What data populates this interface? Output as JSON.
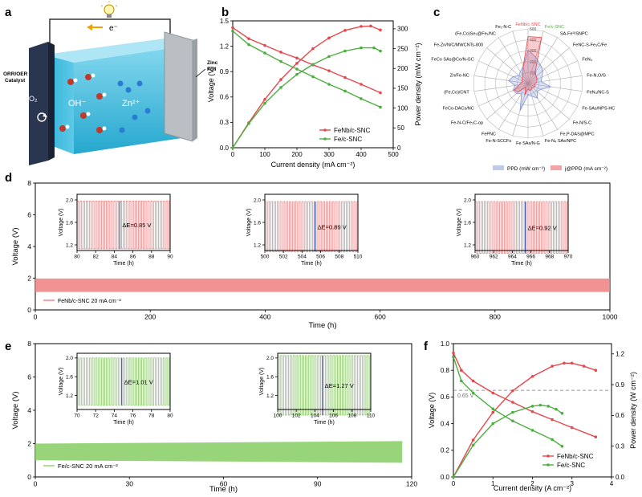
{
  "panels": {
    "a": {
      "letter": "a",
      "electron": "e⁻",
      "catalyst": [
        "ORR/OER",
        "Catalyst"
      ],
      "zinc": [
        "Zinc",
        "Foil"
      ],
      "o2": "O₂",
      "oh": "OH⁻",
      "zn": "Zn²⁺"
    },
    "b": {
      "letter": "b"
    },
    "c": {
      "letter": "c"
    },
    "d": {
      "letter": "d"
    },
    "e": {
      "letter": "e"
    },
    "f": {
      "letter": "f"
    }
  },
  "chart_data": [
    {
      "id": "b",
      "type": "line",
      "xlabel": "Current density (mA cm⁻²)",
      "ylabel": "Voltage (V)",
      "y2label": "Power density (mW cm⁻²)",
      "xlim": [
        0,
        500
      ],
      "ylim": [
        0,
        1.5
      ],
      "y2lim": [
        0,
        320
      ],
      "xticks": [
        0,
        100,
        200,
        300,
        400,
        500
      ],
      "yticks": [
        0.0,
        0.3,
        0.6,
        0.9,
        1.2,
        1.5
      ],
      "y2ticks": [
        0,
        50,
        100,
        150,
        200,
        250,
        300
      ],
      "legend_position": "bottom-right",
      "series": [
        {
          "name": "FeNb/c-SNC",
          "axis": "left",
          "color": "#e8474d",
          "x": [
            0,
            50,
            100,
            150,
            200,
            250,
            300,
            350,
            400,
            460
          ],
          "y": [
            1.42,
            1.29,
            1.21,
            1.13,
            1.06,
            0.98,
            0.91,
            0.83,
            0.75,
            0.65
          ]
        },
        {
          "name": "FeNb/c-SNC",
          "axis": "right",
          "color": "#e8474d",
          "x": [
            0,
            50,
            100,
            150,
            200,
            250,
            300,
            350,
            400,
            430,
            460
          ],
          "y": [
            0,
            63,
            122,
            172,
            213,
            250,
            277,
            296,
            306,
            307,
            297
          ]
        },
        {
          "name": "Fe/c-SNC",
          "axis": "left",
          "color": "#4caf3f",
          "x": [
            0,
            50,
            100,
            150,
            200,
            250,
            300,
            350,
            400,
            460
          ],
          "y": [
            1.38,
            1.22,
            1.12,
            1.02,
            0.93,
            0.84,
            0.75,
            0.67,
            0.58,
            0.48
          ]
        },
        {
          "name": "Fe/c-SNC",
          "axis": "right",
          "color": "#4caf3f",
          "x": [
            0,
            50,
            100,
            150,
            200,
            250,
            300,
            350,
            400,
            440,
            460
          ],
          "y": [
            0,
            61,
            112,
            152,
            185,
            210,
            230,
            244,
            252,
            252,
            244
          ]
        }
      ]
    },
    {
      "id": "c",
      "type": "radar",
      "ring_labels": [
        "100",
        "200",
        "300",
        "400",
        "500"
      ],
      "spokes": [
        "FeNb/c-SNC",
        "Fe/c-SNC",
        "SA-Fe⁰/SNPC",
        "FeNC-S-Fe₃C/Fe",
        "FeN₄",
        "Fe-N,O/G",
        "FeN₄/NC-S",
        "Fe-SAs/NPS-HC",
        "Fe-N/S-C",
        "Fe,P-DAS@MPC",
        "Fe-N₄ SAs/NPC",
        "Fe SAs/N-G",
        "Fe-N-SCCFs",
        "FePNC",
        "Fe-N-C/Fe₃C-op",
        "FeCo-DACs/NC",
        "(Fe,Co)/CNT",
        "Zn/Fe-NC",
        "FeCo SAs@Co/N-GC",
        "Fe-Zn/N/C/MWCNTs-800",
        "(Fe,Co)Se₂@Fe₁/NC",
        "Fe₁-N-C"
      ],
      "series": [
        {
          "name": "PPD (mW cm⁻²)",
          "color": "#7f93d6",
          "values": [
            306,
            252,
            205,
            180,
            140,
            120,
            210,
            130,
            110,
            160,
            120,
            105,
            260,
            110,
            140,
            150,
            120,
            180,
            150,
            110,
            130,
            160
          ]
        },
        {
          "name": "j@PPD (mA cm⁻²)",
          "color": "#e8474d",
          "values": [
            430,
            440,
            120,
            100,
            90,
            80,
            60,
            70,
            50,
            60,
            70,
            50,
            110,
            40,
            120,
            140,
            80,
            60,
            60,
            70,
            90,
            160
          ]
        }
      ]
    },
    {
      "id": "d",
      "type": "line",
      "xlabel": "Time (h)",
      "ylabel": "Voltage (V)",
      "xlim": [
        0,
        1000
      ],
      "ylim": [
        0,
        8
      ],
      "xticks": [
        0,
        200,
        400,
        600,
        800,
        1000
      ],
      "yticks": [
        0,
        2,
        4,
        6,
        8
      ],
      "series": [
        {
          "name": "FeNb/c-SNC 20 mA cm⁻²",
          "color": "#f08080",
          "charge_voltage": 1.98,
          "discharge_voltage": 1.13,
          "x": [
            0,
            1000
          ]
        }
      ],
      "insets": [
        {
          "xlim": [
            80,
            90
          ],
          "xticks": [
            80,
            82,
            84,
            86,
            88,
            90
          ],
          "ylim": [
            1.1,
            2.1
          ],
          "yticks": [
            1.2,
            1.6,
            2.0
          ],
          "annotation": "ΔE=0.85 V",
          "marker_x": 84.6,
          "cycle_period": 0.33,
          "vhigh": 1.98,
          "vlow": 1.13,
          "xlabel": "Time (h)",
          "ylabel": "Voltage (V)"
        },
        {
          "xlim": [
            500,
            510
          ],
          "xticks": [
            500,
            502,
            504,
            506,
            508,
            510
          ],
          "ylim": [
            1.1,
            2.1
          ],
          "yticks": [
            1.2,
            1.6,
            2.0
          ],
          "annotation": "ΔE=0.89 V",
          "marker_x": 505.4,
          "cycle_period": 0.33,
          "vhigh": 1.97,
          "vlow": 1.08,
          "xlabel": "Time (h)",
          "ylabel": "Voltage (V)"
        },
        {
          "xlim": [
            960,
            970
          ],
          "xticks": [
            960,
            962,
            964,
            966,
            968,
            970
          ],
          "ylim": [
            1.1,
            2.1
          ],
          "yticks": [
            1.2,
            1.6,
            2.0
          ],
          "annotation": "ΔE=0.92 V",
          "marker_x": 965.4,
          "cycle_period": 0.33,
          "vhigh": 1.97,
          "vlow": 1.05,
          "xlabel": "Time (h)",
          "ylabel": "Voltage (V)"
        }
      ]
    },
    {
      "id": "e",
      "type": "line",
      "xlabel": "Time (h)",
      "ylabel": "Voltage (V)",
      "xlim": [
        0,
        120
      ],
      "ylim": [
        0,
        8
      ],
      "xticks": [
        0,
        30,
        60,
        90,
        120
      ],
      "yticks": [
        0,
        2,
        4,
        6,
        8
      ],
      "series": [
        {
          "name": "Fe/c-SNC 20 mA cm⁻²",
          "color": "#8dcf6a",
          "charge_start": 2.0,
          "charge_end": 2.15,
          "discharge_start": 1.0,
          "discharge_end": 0.85,
          "x": [
            0,
            117
          ]
        }
      ],
      "insets": [
        {
          "xlim": [
            70,
            80
          ],
          "xticks": [
            70,
            72,
            74,
            76,
            78,
            80
          ],
          "ylim": [
            0.9,
            2.1
          ],
          "yticks": [
            1.2,
            1.6,
            2.0
          ],
          "annotation": "ΔE=1.01 V",
          "marker_x": 74.8,
          "cycle_period": 0.33,
          "vhigh": 2.0,
          "vlow": 0.99,
          "xlabel": "Time (h)",
          "ylabel": "Voltage (V)"
        },
        {
          "xlim": [
            100,
            110
          ],
          "xticks": [
            100,
            102,
            104,
            106,
            108,
            110
          ],
          "ylim": [
            0.9,
            2.1
          ],
          "yticks": [
            1.2,
            1.6,
            2.0
          ],
          "annotation": "ΔE=1.27 V",
          "marker_x": 104.8,
          "cycle_period": 0.33,
          "vhigh": 2.05,
          "vlow": 0.78,
          "xlabel": "Time (h)",
          "ylabel": "Voltage (V)"
        }
      ]
    },
    {
      "id": "f",
      "type": "line",
      "xlabel": "Current density (A cm⁻²)",
      "ylabel": "Voltage (V)",
      "y2label": "Power density (W cm⁻²)",
      "xlim": [
        0,
        4
      ],
      "ylim": [
        0,
        1.0
      ],
      "y2lim": [
        0,
        1.3
      ],
      "xticks": [
        0,
        1,
        2,
        3,
        4
      ],
      "yticks": [
        0.0,
        0.2,
        0.4,
        0.6,
        0.8,
        1.0
      ],
      "y2ticks": [
        0.0,
        0.3,
        0.6,
        0.9,
        1.2
      ],
      "reference": {
        "y": 0.65,
        "label": "0.65 V"
      },
      "legend_position": "bottom-right",
      "series": [
        {
          "name": "FeNb/c-SNC",
          "axis": "left",
          "color": "#e8474d",
          "x": [
            0,
            0.2,
            0.5,
            1.0,
            1.5,
            2.0,
            2.5,
            3.0,
            3.6
          ],
          "y": [
            0.93,
            0.8,
            0.72,
            0.63,
            0.56,
            0.49,
            0.43,
            0.37,
            0.3
          ]
        },
        {
          "name": "FeNb/c-SNC",
          "axis": "right",
          "color": "#e8474d",
          "x": [
            0,
            0.5,
            1.0,
            1.5,
            2.0,
            2.5,
            2.8,
            3.0,
            3.3,
            3.6
          ],
          "y": [
            0,
            0.36,
            0.63,
            0.84,
            0.98,
            1.08,
            1.11,
            1.11,
            1.08,
            1.04
          ]
        },
        {
          "name": "Fe/c-SNC",
          "axis": "left",
          "color": "#4caf3f",
          "x": [
            0,
            0.2,
            0.5,
            1.0,
            1.5,
            2.0,
            2.5,
            2.75
          ],
          "y": [
            0.9,
            0.72,
            0.63,
            0.51,
            0.42,
            0.35,
            0.28,
            0.23
          ]
        },
        {
          "name": "Fe/c-SNC",
          "axis": "right",
          "color": "#4caf3f",
          "x": [
            0,
            0.5,
            1.0,
            1.5,
            2.0,
            2.2,
            2.4,
            2.6,
            2.75
          ],
          "y": [
            0,
            0.31,
            0.52,
            0.63,
            0.69,
            0.7,
            0.69,
            0.66,
            0.62
          ]
        }
      ]
    }
  ]
}
